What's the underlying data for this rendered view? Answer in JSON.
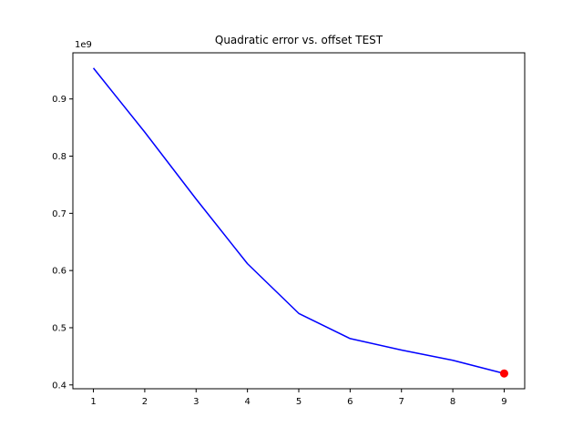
{
  "chart_data": {
    "type": "line",
    "title": "Quadratic error vs. offset TEST",
    "xlabel": "",
    "ylabel": "",
    "y_offset_text": "1e9",
    "x": [
      1,
      2,
      3,
      4,
      5,
      6,
      7,
      8,
      9
    ],
    "series": [
      {
        "color": "#0000ff",
        "values": [
          954000000,
          842000000,
          725000000,
          612000000,
          525000000,
          481000000,
          461000000,
          443000000,
          420000000
        ]
      }
    ],
    "highlight_point": {
      "x": 9,
      "y": 420000000,
      "color": "#ff0000"
    },
    "xlim": [
      0.6,
      9.4
    ],
    "ylim": [
      393300000,
      980700000
    ],
    "xticks": [
      1,
      2,
      3,
      4,
      5,
      6,
      7,
      8,
      9
    ],
    "yticks": [
      400000000,
      500000000,
      600000000,
      700000000,
      800000000,
      900000000
    ],
    "ytick_labels": [
      "0.4",
      "0.5",
      "0.6",
      "0.7",
      "0.8",
      "0.9"
    ],
    "grid": false,
    "legend": "none"
  }
}
